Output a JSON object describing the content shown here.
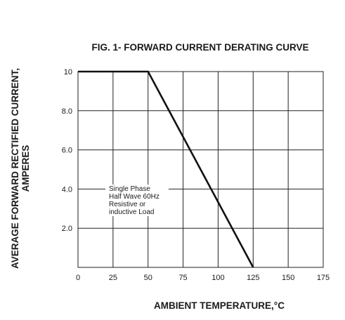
{
  "chart_data": {
    "type": "line",
    "title": "FIG. 1- FORWARD CURRENT DERATING CURVE",
    "xlabel": "AMBIENT TEMPERATURE,°C",
    "ylabel_lines": [
      "AVERAGE FORWARD RECTIFIED CURRENT,",
      "AMPERES"
    ],
    "xlim": [
      0,
      175
    ],
    "ylim": [
      0,
      10
    ],
    "x_ticks": [
      0,
      25,
      50,
      75,
      100,
      125,
      150,
      175
    ],
    "x_tick_labels": [
      "0",
      "25",
      "50",
      "75",
      "100",
      "125",
      "150",
      "175"
    ],
    "y_ticks": [
      2,
      4,
      6,
      8,
      10
    ],
    "y_tick_labels": [
      "2.0",
      "4.0",
      "6.0",
      "8.0",
      "10"
    ],
    "grid": true,
    "series": [
      {
        "x": [
          0,
          50,
          125
        ],
        "y": [
          10,
          10,
          0
        ]
      }
    ],
    "annotation": {
      "lines": [
        "Single Phase",
        "Half Wave 60Hz",
        "Resistive or",
        "inductive Load"
      ]
    }
  },
  "colors": {
    "line": "#111111",
    "grid": "#222222",
    "text": "#1a1a1a"
  }
}
